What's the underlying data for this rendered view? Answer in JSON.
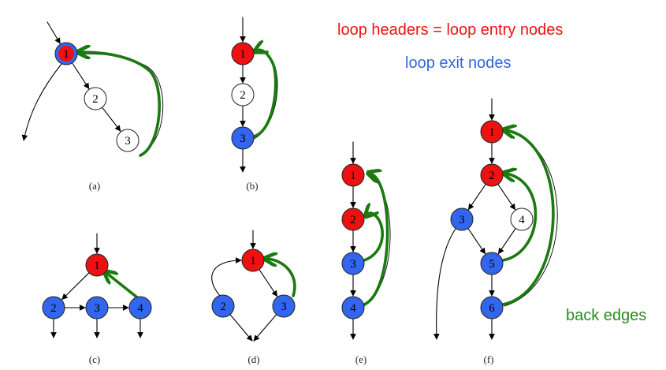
{
  "legend": {
    "headers": "loop headers = loop entry nodes",
    "exits": "loop exit nodes",
    "back_edges": "back edges"
  },
  "colors": {
    "header": "#ee1111",
    "exit": "#3366ee",
    "plain": "#ffffff",
    "back_edge": "#1a7a10",
    "legend_header": "#ee1111",
    "legend_exit": "#3366dd",
    "legend_back": "#2a8a20"
  },
  "graphs": [
    {
      "caption": "(a)",
      "nodes": [
        {
          "label": "1",
          "type": "both"
        },
        {
          "label": "2",
          "type": "plain"
        },
        {
          "label": "3",
          "type": "plain"
        }
      ]
    },
    {
      "caption": "(b)",
      "nodes": [
        {
          "label": "1",
          "type": "header"
        },
        {
          "label": "2",
          "type": "plain"
        },
        {
          "label": "3",
          "type": "exit"
        }
      ]
    },
    {
      "caption": "(c)",
      "nodes": [
        {
          "label": "1",
          "type": "header"
        },
        {
          "label": "2",
          "type": "exit"
        },
        {
          "label": "3",
          "type": "exit"
        },
        {
          "label": "4",
          "type": "exit"
        }
      ]
    },
    {
      "caption": "(d)",
      "nodes": [
        {
          "label": "1",
          "type": "header"
        },
        {
          "label": "2",
          "type": "exit"
        },
        {
          "label": "3",
          "type": "exit"
        }
      ]
    },
    {
      "caption": "(e)",
      "nodes": [
        {
          "label": "1",
          "type": "header"
        },
        {
          "label": "2",
          "type": "header"
        },
        {
          "label": "3",
          "type": "exit"
        },
        {
          "label": "4",
          "type": "exit"
        }
      ]
    },
    {
      "caption": "(f)",
      "nodes": [
        {
          "label": "1",
          "type": "header"
        },
        {
          "label": "2",
          "type": "header"
        },
        {
          "label": "3",
          "type": "exit"
        },
        {
          "label": "4",
          "type": "plain"
        },
        {
          "label": "5",
          "type": "exit"
        },
        {
          "label": "6",
          "type": "exit"
        }
      ]
    }
  ]
}
